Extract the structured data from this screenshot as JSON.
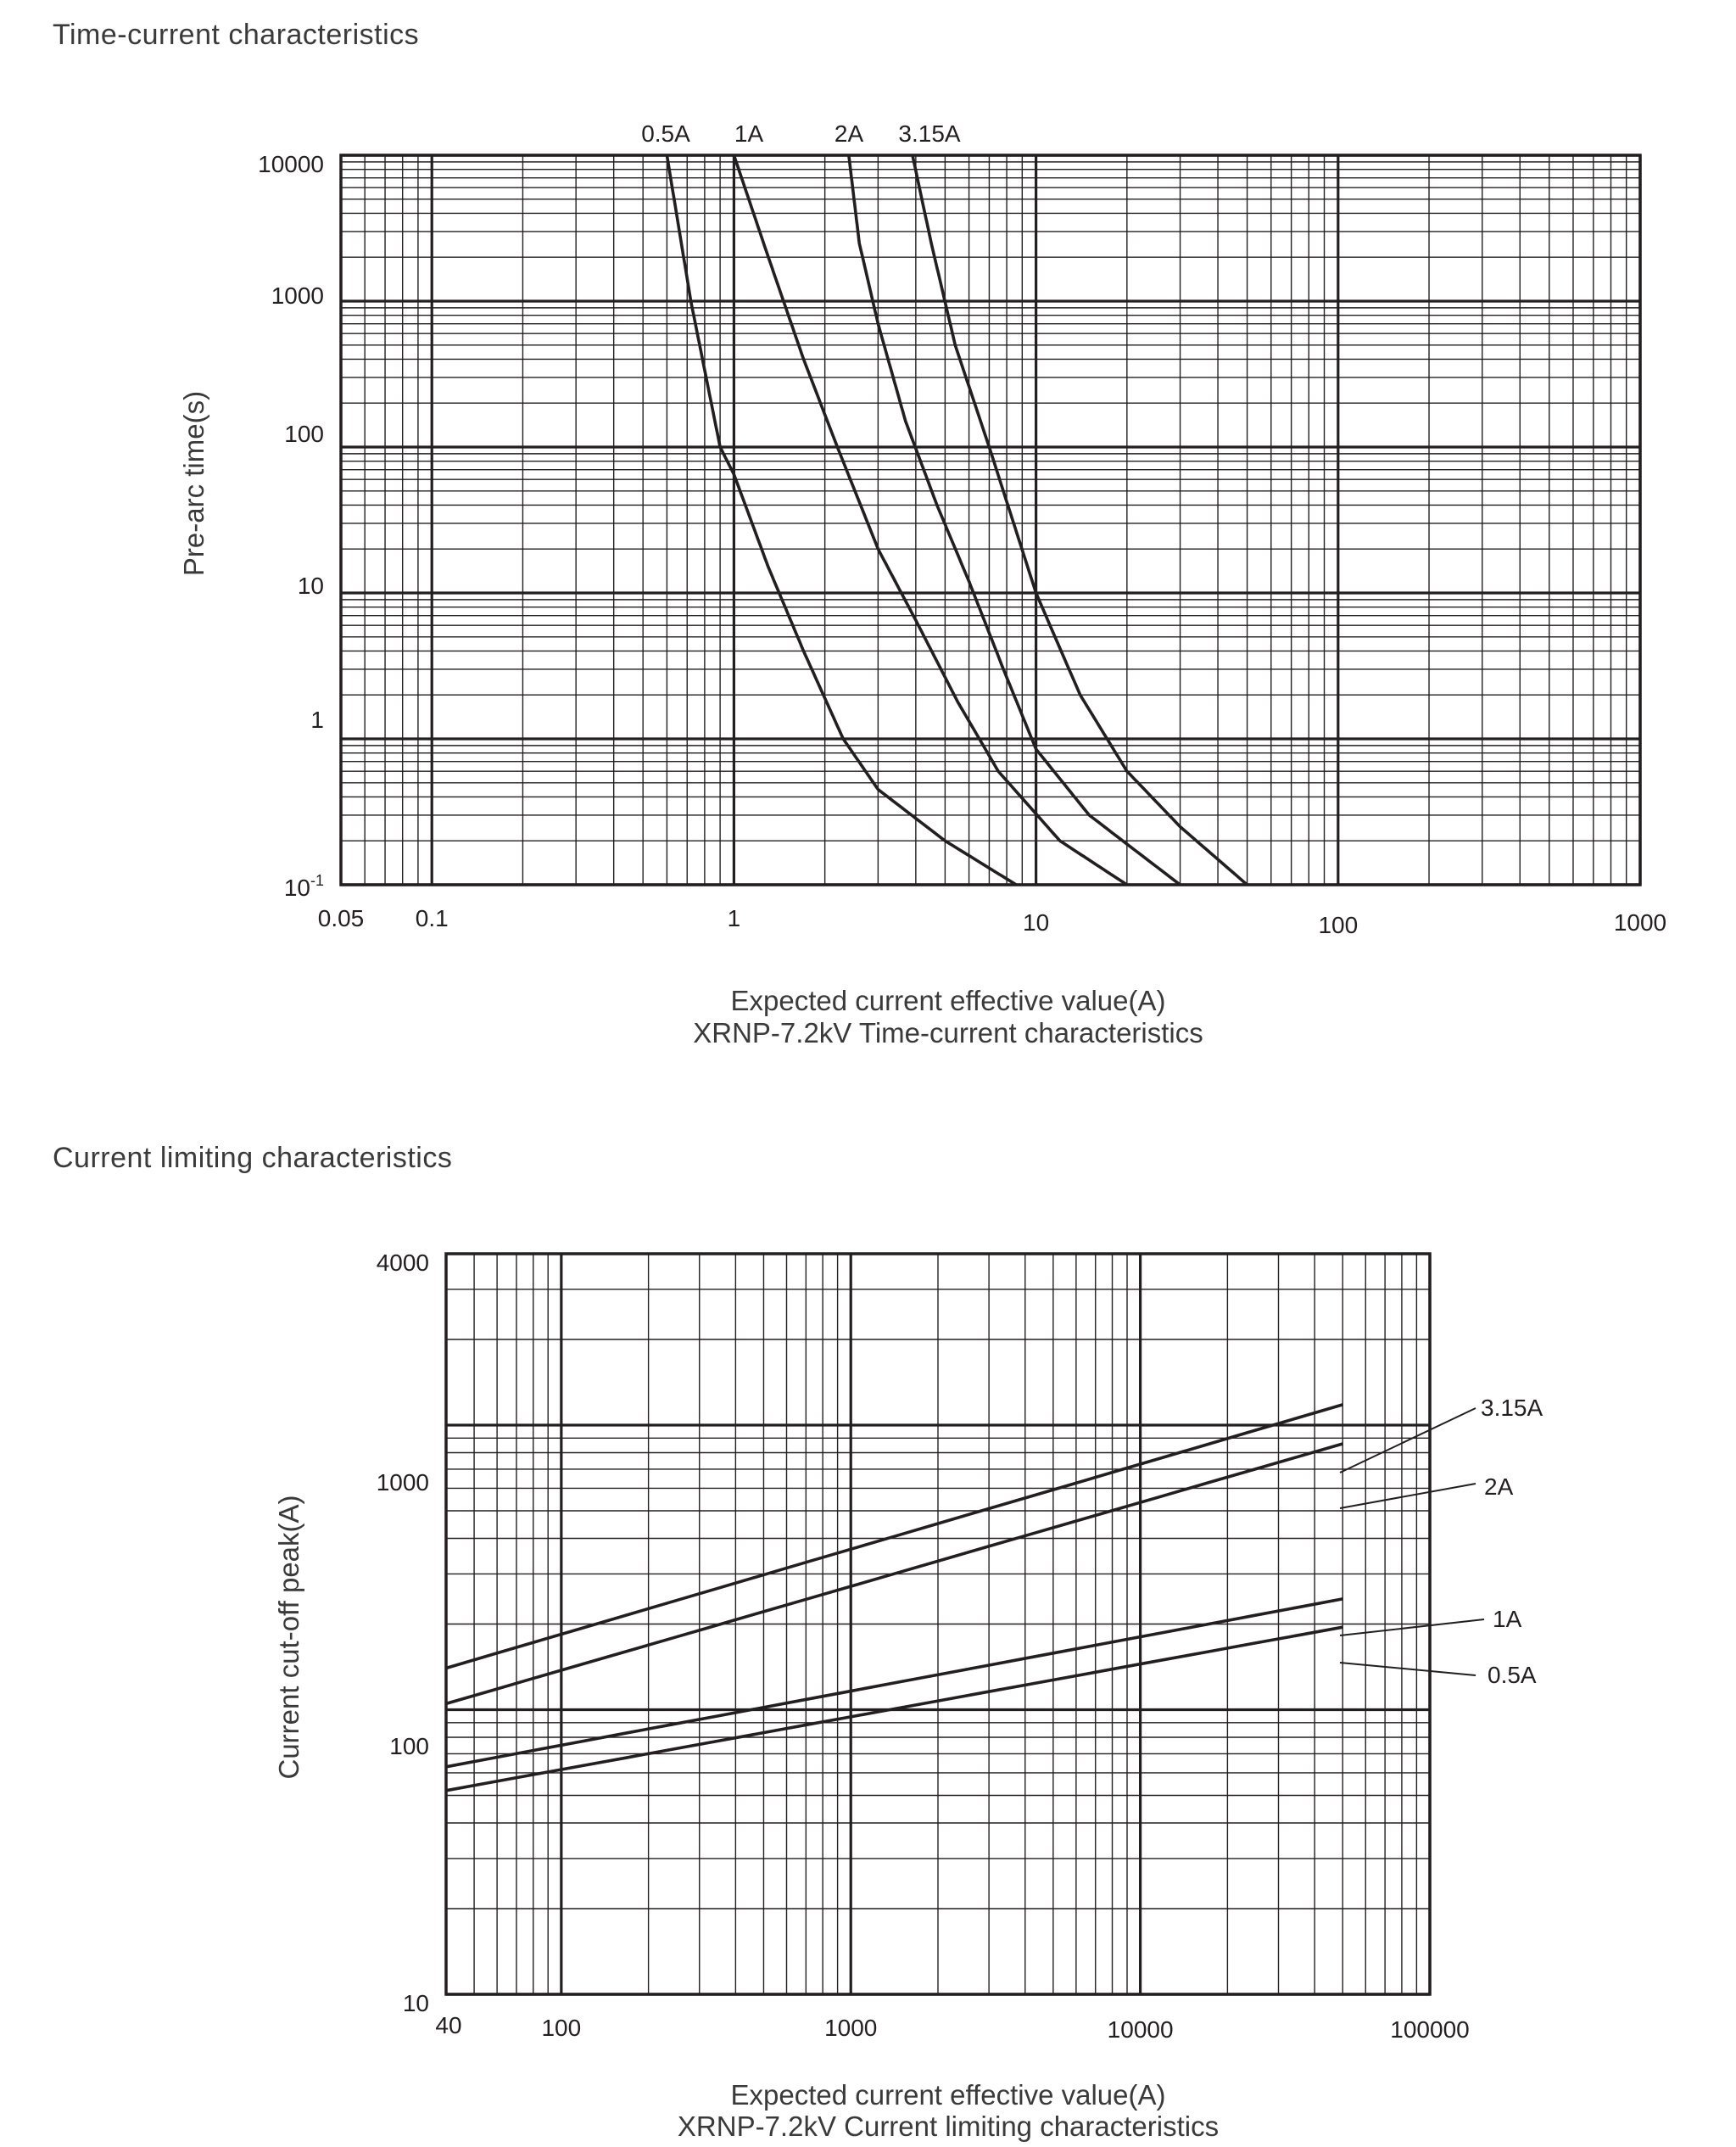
{
  "sections": {
    "time_current": "Time-current characteristics",
    "current_limiting": "Current limiting characteristics"
  },
  "colors": {
    "ink": "#231f20",
    "grid": "#231f20",
    "background": "#ffffff"
  },
  "chart_data": [
    {
      "type": "line",
      "scale": "log-log",
      "title": "XRNP-7.2kV Time-current characteristics",
      "xlabel": "Expected current effective value(A)",
      "ylabel": "Pre-arc time(s)",
      "xlim": [
        0.05,
        1000
      ],
      "ylim": [
        0.1,
        10000
      ],
      "x_ticks": [
        "0.05",
        "0.1",
        "1",
        "10",
        "100",
        "1000"
      ],
      "y_ticks": [
        "10000",
        "1000",
        "100",
        "10",
        "1",
        "10-1"
      ],
      "grid": true,
      "series": [
        {
          "name": "0.5A",
          "points": [
            [
              0.6,
              10000
            ],
            [
              0.72,
              1000
            ],
            [
              0.9,
              100
            ],
            [
              1.0,
              65
            ],
            [
              1.3,
              15
            ],
            [
              1.7,
              4
            ],
            [
              2.3,
              1
            ],
            [
              3.0,
              0.45
            ],
            [
              5.0,
              0.2
            ],
            [
              8.6,
              0.1
            ]
          ]
        },
        {
          "name": "1A",
          "points": [
            [
              1.0,
              10000
            ],
            [
              1.3,
              2000
            ],
            [
              1.7,
              400
            ],
            [
              2.2,
              100
            ],
            [
              3.0,
              20
            ],
            [
              4.0,
              6.5
            ],
            [
              5.5,
              1.8
            ],
            [
              7.5,
              0.6
            ],
            [
              12.0,
              0.2
            ],
            [
              20.0,
              0.1
            ]
          ]
        },
        {
          "name": "2A",
          "points": [
            [
              2.4,
              10000
            ],
            [
              2.6,
              2500
            ],
            [
              3.0,
              700
            ],
            [
              3.7,
              150
            ],
            [
              4.7,
              40
            ],
            [
              6.0,
              12
            ],
            [
              7.8,
              3
            ],
            [
              10.0,
              0.85
            ],
            [
              15.0,
              0.3
            ],
            [
              30.0,
              0.1
            ]
          ]
        },
        {
          "name": "3.15A",
          "points": [
            [
              3.9,
              10000
            ],
            [
              4.5,
              2500
            ],
            [
              5.4,
              500
            ],
            [
              7.0,
              100
            ],
            [
              10.0,
              10
            ],
            [
              14.0,
              2
            ],
            [
              20.0,
              0.6
            ],
            [
              30.0,
              0.25
            ],
            [
              50.0,
              0.1
            ]
          ]
        }
      ]
    },
    {
      "type": "line",
      "scale": "log-log",
      "title": "XRNP-7.2kV Current limiting characteristics",
      "xlabel": "Expected current effective value(A)",
      "ylabel": "Current cut-off peak(A)",
      "xlim": [
        40,
        100000
      ],
      "ylim": [
        10,
        4000
      ],
      "x_ticks": [
        "40",
        "100",
        "1000",
        "10000",
        "100000"
      ],
      "y_ticks": [
        "4000",
        "1000",
        "100",
        "10"
      ],
      "grid": true,
      "series": [
        {
          "name": "3.15A",
          "points": [
            [
              40,
              140
            ],
            [
              50000,
              1180
            ]
          ]
        },
        {
          "name": "2A",
          "points": [
            [
              40,
              105
            ],
            [
              50000,
              860
            ]
          ]
        },
        {
          "name": "1A",
          "points": [
            [
              40,
              63
            ],
            [
              50000,
              245
            ]
          ]
        },
        {
          "name": "0.5A",
          "points": [
            [
              40,
              52
            ],
            [
              50000,
              195
            ]
          ]
        }
      ]
    }
  ]
}
